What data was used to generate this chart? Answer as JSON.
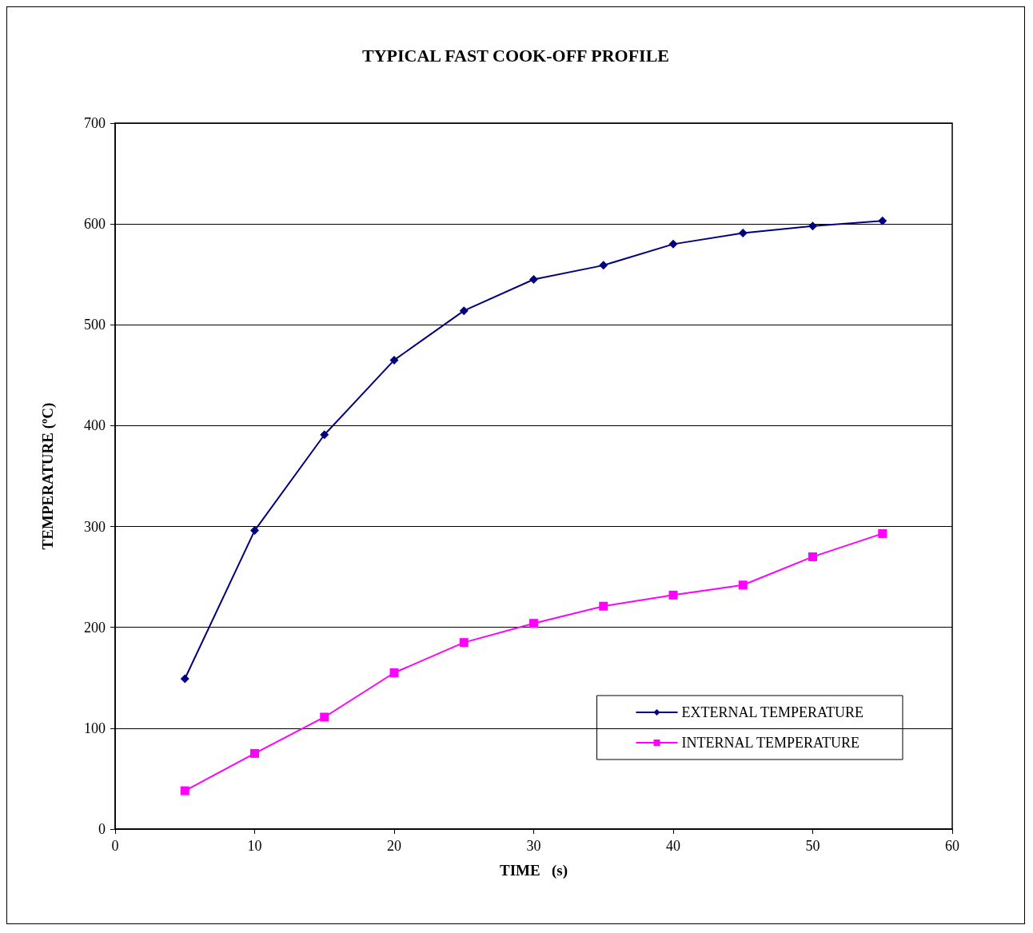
{
  "chart_data": {
    "type": "line",
    "title": "TYPICAL FAST COOK-OFF PROFILE",
    "xlabel": "TIME   (s)",
    "ylabel": "TEMPERATURE (ºC)",
    "x": [
      5,
      10,
      15,
      20,
      25,
      30,
      35,
      40,
      45,
      50,
      55
    ],
    "series": [
      {
        "name": "EXTERNAL TEMPERATURE",
        "color": "#000080",
        "marker": "diamond",
        "values": [
          149,
          296,
          391,
          465,
          514,
          545,
          559,
          580,
          591,
          598,
          603
        ]
      },
      {
        "name": "INTERNAL TEMPERATURE",
        "color": "#ff00ff",
        "marker": "square",
        "values": [
          38,
          75,
          111,
          155,
          185,
          204,
          221,
          232,
          242,
          270,
          293
        ]
      }
    ],
    "xlim": [
      0,
      60
    ],
    "xticks": [
      0,
      10,
      20,
      30,
      40,
      50,
      60
    ],
    "ylim": [
      0,
      700
    ],
    "yticks": [
      0,
      100,
      200,
      300,
      400,
      500,
      600,
      700
    ],
    "grid": "y",
    "legend": "bottom right",
    "line_style": "solid"
  }
}
